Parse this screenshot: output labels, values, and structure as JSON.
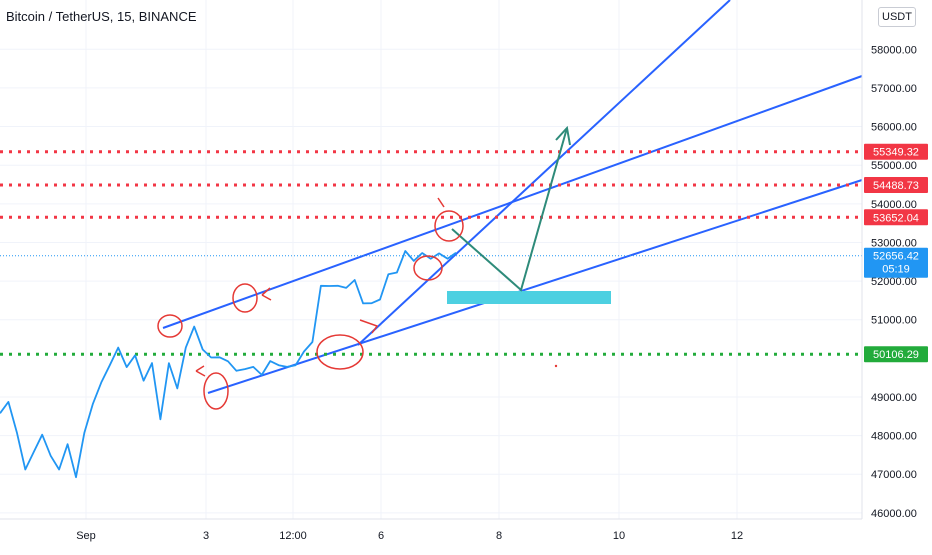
{
  "header": {
    "symbol_title": "Bitcoin / TetherUS, 15, BINANCE",
    "currency_button": "USDT"
  },
  "colors": {
    "price_line": "#2196f3",
    "trend_line": "#2962ff",
    "resistance": "#f23645",
    "support": "#22ab3b",
    "arrow": "#2e8b7a",
    "zone": "#4dd0e1",
    "annotation": "#e53935",
    "last_price": "#2196f3"
  },
  "chart_data": {
    "type": "line",
    "title": "Bitcoin / TetherUS, 15, BINANCE",
    "xlabel": "",
    "ylabel": "",
    "ylim": [
      45450,
      58600
    ],
    "grid": true,
    "x_tick_labels": [
      "Sep",
      "3",
      "12:00",
      "6",
      "8",
      "10",
      "12"
    ],
    "y_tick_labels": [
      "46000.00",
      "47000.00",
      "48000.00",
      "49000.00",
      "51000.00",
      "52000.00",
      "53000.00",
      "54000.00",
      "55000.00",
      "56000.00",
      "57000.00",
      "58000.00"
    ],
    "series": [
      {
        "x": [
          0,
          0.5,
          1,
          1.5,
          2,
          2.5,
          3,
          3.5,
          4,
          4.5,
          5,
          5.5,
          6,
          6.5,
          7,
          7.5,
          8,
          8.5,
          9,
          9.5,
          10,
          10.5,
          11,
          11.5,
          12,
          12.5,
          13,
          13.5,
          14,
          14.5,
          15,
          15.5,
          16,
          16.5,
          17,
          17.5,
          18,
          18.5,
          19,
          19.5,
          20,
          20.5,
          21,
          21.5,
          22,
          22.5,
          23,
          23.5,
          24,
          24.5,
          25,
          25.5,
          26,
          26.5,
          27
        ],
        "values": [
          48500,
          48950,
          48000,
          47200,
          47500,
          48100,
          47400,
          47200,
          47700,
          47000,
          48000,
          48900,
          49300,
          49900,
          50200,
          49850,
          50000,
          49500,
          49800,
          48500,
          49800,
          49300,
          50200,
          50900,
          50150,
          50100,
          49950,
          50000,
          49600,
          49800,
          49700,
          49650,
          49850,
          49900,
          49700,
          49900,
          50100,
          50500,
          51800,
          51950,
          51800,
          51900,
          51950,
          51500,
          51350,
          51600,
          52100,
          52300,
          52700,
          52600,
          52650,
          52656.42,
          52640,
          52656.42,
          52656.42
        ]
      }
    ],
    "horizontal_levels": [
      {
        "label": "55349.32",
        "value": 55349.32,
        "style": "dotted-red"
      },
      {
        "label": "54488.73",
        "value": 54488.73,
        "style": "dotted-red"
      },
      {
        "label": "53652.04",
        "value": 53652.04,
        "style": "dotted-red"
      },
      {
        "label": "50106.29",
        "value": 50106.29,
        "style": "dotted-green"
      }
    ],
    "last_price": {
      "label": "52656.42",
      "value": 52656.42,
      "countdown": "05:19"
    }
  }
}
